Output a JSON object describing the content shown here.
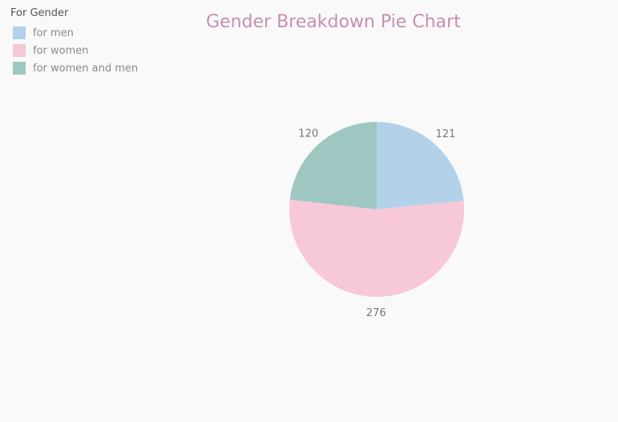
{
  "chart_data": {
    "type": "pie",
    "title": "Gender Breakdown Pie Chart",
    "legend": {
      "title": "For Gender",
      "placement": "top-left"
    },
    "categories": [
      "for men",
      "for women",
      "for women and men"
    ],
    "values": [
      121,
      276,
      120
    ],
    "colors": [
      "#b3d2ea",
      "#f6c8d8",
      "#9ec7c2"
    ],
    "data_labels": [
      "121",
      "276",
      "120"
    ]
  }
}
